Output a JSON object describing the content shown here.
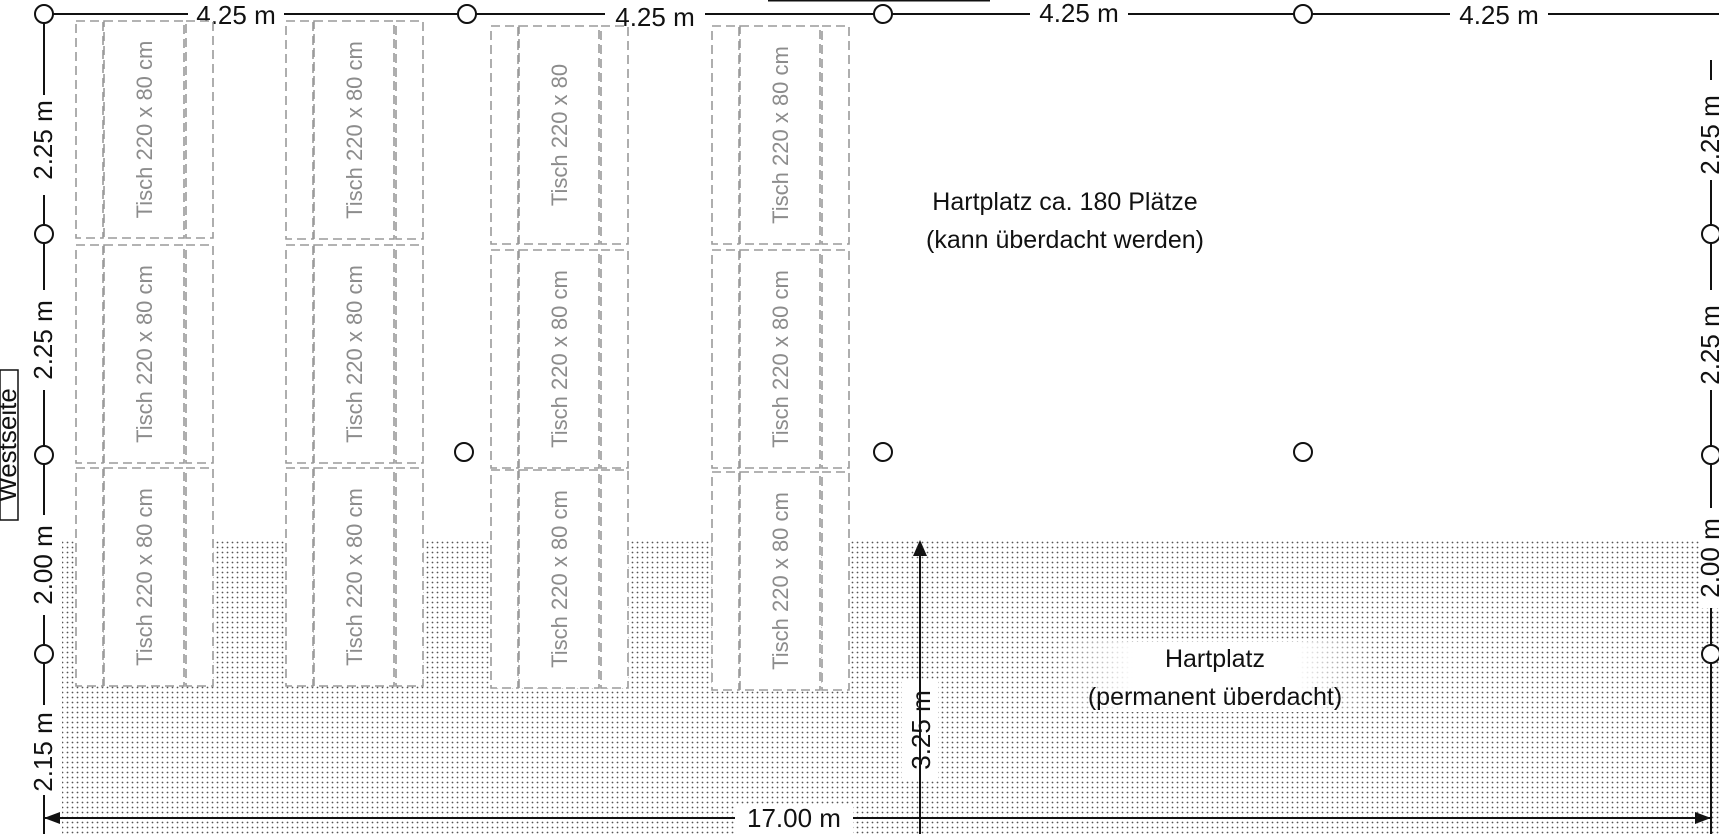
{
  "dimensions": {
    "top": [
      "4.25 m",
      "4.25 m",
      "4.25 m",
      "4.25 m"
    ],
    "left": [
      "2.25 m",
      "2.25 m",
      "2.00 m",
      "2.15 m"
    ],
    "right": [
      "2.25 m",
      "2.25 m",
      "2.00 m"
    ],
    "total_width": "17.00 m",
    "covered_depth": "3.25 m"
  },
  "side_label": "Westseite",
  "areas": {
    "open": {
      "line1": "Hartplatz ca. 180 Plätze",
      "line2": "(kann überdacht werden)"
    },
    "covered": {
      "line1": "Hartplatz",
      "line2": "(permanent überdacht)"
    }
  },
  "tables": {
    "standard_label": "Tisch 220 x 80 cm",
    "short_label": "Tisch 220 x 80"
  },
  "colors": {
    "line": "#111111",
    "table_outline": "#9a9a9a",
    "table_text": "#8c8c8c",
    "dot_pattern": "#555555"
  }
}
